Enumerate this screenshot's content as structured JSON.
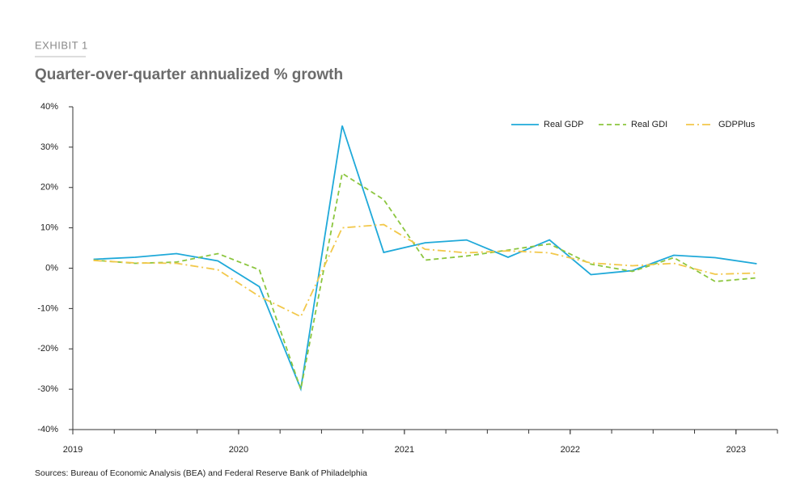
{
  "chart_data": {
    "type": "line",
    "kicker": "EXHIBIT 1",
    "title": "Quarter-over-quarter annualized % growth",
    "source": "Sources: Bureau of Economic Analysis (BEA) and Federal Reserve Bank of Philadelphia",
    "x": [
      2019.125,
      2019.375,
      2019.625,
      2019.875,
      2020.125,
      2020.375,
      2020.625,
      2020.875,
      2021.125,
      2021.375,
      2021.625,
      2021.875,
      2022.125,
      2022.375,
      2022.625,
      2022.875,
      2023.125
    ],
    "xlim": [
      2019,
      2023.25
    ],
    "xticks": [
      2019,
      2020,
      2021,
      2022,
      2023
    ],
    "ylim": [
      -40,
      40
    ],
    "yticks": [
      {
        "value": -40,
        "label": "-40%"
      },
      {
        "value": -30,
        "label": "-30%"
      },
      {
        "value": -20,
        "label": "-20%"
      },
      {
        "value": -10,
        "label": "-10%"
      },
      {
        "value": 0,
        "label": "0%"
      },
      {
        "value": 10,
        "label": "10%"
      },
      {
        "value": 20,
        "label": "20%"
      },
      {
        "value": 30,
        "label": "30%"
      },
      {
        "value": 40,
        "label": "40%"
      }
    ],
    "legend": "top-right",
    "series": [
      {
        "name": "Real GDP",
        "color": "#1fa9d9",
        "dash": "solid",
        "values": [
          2.2,
          2.7,
          3.6,
          1.8,
          -4.6,
          -29.9,
          35.3,
          3.9,
          6.3,
          7.0,
          2.7,
          7.0,
          -1.6,
          -0.6,
          3.2,
          2.6,
          1.1
        ]
      },
      {
        "name": "Real GDI",
        "color": "#8cc63f",
        "dash": "dashed",
        "values": [
          2.0,
          1.2,
          1.5,
          3.6,
          -0.4,
          -30.0,
          23.5,
          17.0,
          2.0,
          3.0,
          4.5,
          6.0,
          1.0,
          -0.8,
          2.6,
          -3.3,
          -2.4
        ]
      },
      {
        "name": "GDPPlus",
        "color": "#f2c84b",
        "dash": "dashdot",
        "values": [
          1.9,
          1.3,
          1.2,
          -0.4,
          -7.0,
          -12.0,
          10.0,
          10.8,
          4.7,
          3.8,
          4.3,
          3.8,
          1.3,
          0.6,
          1.2,
          -1.5,
          -1.2
        ]
      }
    ]
  }
}
